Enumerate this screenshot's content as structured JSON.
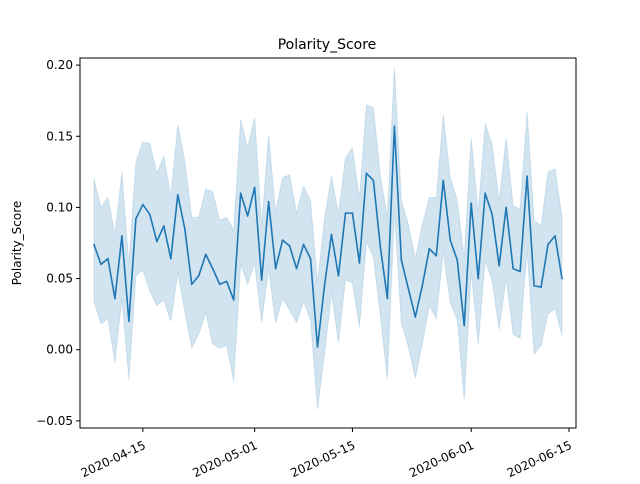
{
  "chart_data": {
    "type": "line",
    "title": "Polarity_Score",
    "xlabel": "",
    "ylabel": "Polarity_Score",
    "x_ticks": [
      "2020-04-15",
      "2020-05-01",
      "2020-05-15",
      "2020-06-01",
      "2020-06-15"
    ],
    "y_ticks": [
      "−0.05",
      "0.00",
      "0.05",
      "0.10",
      "0.15",
      "0.20"
    ],
    "x_start": "2020-04-08",
    "ylim": [
      -0.055,
      0.205
    ],
    "xlim": [
      "2020-04-06",
      "2020-06-16"
    ],
    "grid": false,
    "line_color": "#1f77b4",
    "band_color": "#1f77b4",
    "series": [
      {
        "x": [
          "2020-04-08",
          "2020-04-09",
          "2020-04-10",
          "2020-04-11",
          "2020-04-12",
          "2020-04-13",
          "2020-04-14",
          "2020-04-15",
          "2020-04-16",
          "2020-04-17",
          "2020-04-18",
          "2020-04-19",
          "2020-04-20",
          "2020-04-21",
          "2020-04-22",
          "2020-04-23",
          "2020-04-24",
          "2020-04-25",
          "2020-04-26",
          "2020-04-27",
          "2020-04-28",
          "2020-04-29",
          "2020-04-30",
          "2020-05-01",
          "2020-05-02",
          "2020-05-03",
          "2020-05-04",
          "2020-05-05",
          "2020-05-06",
          "2020-05-07",
          "2020-05-08",
          "2020-05-09",
          "2020-05-10",
          "2020-05-11",
          "2020-05-12",
          "2020-05-13",
          "2020-05-14",
          "2020-05-15",
          "2020-05-16",
          "2020-05-17",
          "2020-05-18",
          "2020-05-19",
          "2020-05-20",
          "2020-05-21",
          "2020-05-22",
          "2020-05-23",
          "2020-05-24",
          "2020-05-25",
          "2020-05-26",
          "2020-05-27",
          "2020-05-28",
          "2020-05-29",
          "2020-05-30",
          "2020-05-31",
          "2020-06-01",
          "2020-06-02",
          "2020-06-03",
          "2020-06-04",
          "2020-06-05",
          "2020-06-06",
          "2020-06-07",
          "2020-06-08",
          "2020-06-09",
          "2020-06-10",
          "2020-06-11",
          "2020-06-12",
          "2020-06-13",
          "2020-06-14"
        ],
        "values": [
          0.074,
          0.06,
          0.064,
          0.036,
          0.08,
          0.02,
          0.092,
          0.102,
          0.095,
          0.076,
          0.087,
          0.064,
          0.109,
          0.085,
          0.046,
          0.052,
          0.067,
          0.057,
          0.046,
          0.048,
          0.035,
          0.11,
          0.094,
          0.114,
          0.049,
          0.104,
          0.057,
          0.077,
          0.073,
          0.057,
          0.074,
          0.064,
          0.002,
          0.045,
          0.081,
          0.052,
          0.096,
          0.096,
          0.061,
          0.124,
          0.119,
          0.072,
          0.036,
          0.157,
          0.063,
          0.043,
          0.023,
          0.045,
          0.071,
          0.066,
          0.119,
          0.077,
          0.063,
          0.017,
          0.103,
          0.05,
          0.11,
          0.095,
          0.059,
          0.1,
          0.057,
          0.055,
          0.122,
          0.045,
          0.044,
          0.074,
          0.08,
          0.05
        ],
        "lower": [
          0.034,
          0.018,
          0.022,
          -0.009,
          0.036,
          -0.021,
          0.052,
          0.056,
          0.041,
          0.031,
          0.035,
          0.02,
          0.054,
          0.027,
          0.001,
          0.011,
          0.026,
          0.004,
          0.001,
          0.003,
          -0.022,
          0.06,
          0.046,
          0.061,
          0.019,
          0.057,
          0.019,
          0.036,
          0.028,
          0.019,
          0.034,
          0.021,
          -0.042,
          -0.003,
          0.04,
          0.005,
          0.049,
          0.047,
          0.016,
          0.076,
          0.065,
          0.024,
          -0.021,
          0.096,
          0.019,
          0.002,
          -0.02,
          0.004,
          0.031,
          0.022,
          0.069,
          0.033,
          0.021,
          -0.035,
          0.055,
          0.004,
          0.063,
          0.048,
          0.014,
          0.05,
          0.011,
          0.008,
          0.07,
          -0.003,
          0.003,
          0.025,
          0.029,
          0.01
        ],
        "upper": [
          0.12,
          0.1,
          0.107,
          0.081,
          0.125,
          0.06,
          0.132,
          0.146,
          0.145,
          0.124,
          0.136,
          0.108,
          0.158,
          0.133,
          0.093,
          0.093,
          0.113,
          0.111,
          0.091,
          0.093,
          0.084,
          0.162,
          0.142,
          0.163,
          0.087,
          0.151,
          0.097,
          0.121,
          0.123,
          0.096,
          0.115,
          0.105,
          0.047,
          0.092,
          0.122,
          0.095,
          0.135,
          0.142,
          0.106,
          0.172,
          0.17,
          0.122,
          0.093,
          0.199,
          0.105,
          0.088,
          0.064,
          0.088,
          0.107,
          0.107,
          0.165,
          0.121,
          0.105,
          0.064,
          0.149,
          0.096,
          0.159,
          0.144,
          0.104,
          0.149,
          0.101,
          0.099,
          0.167,
          0.091,
          0.087,
          0.125,
          0.127,
          0.093
        ]
      }
    ]
  }
}
